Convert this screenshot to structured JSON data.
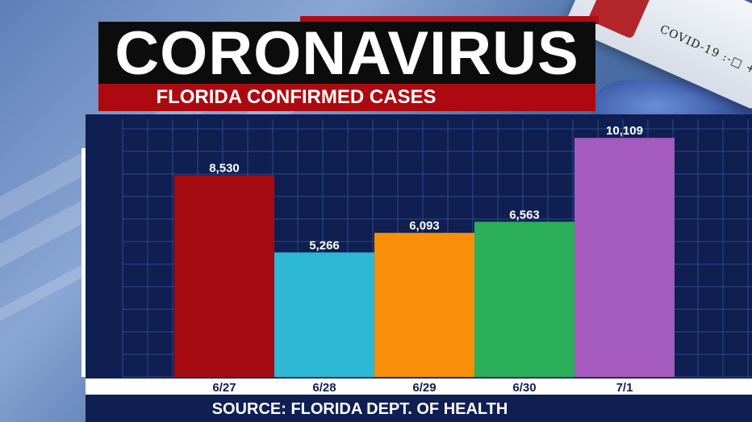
{
  "header": {
    "title": "CORONAVIRUS",
    "subtitle": "FLORIDA CONFIRMED CASES"
  },
  "tube_label": "COVID-19 :-□ +",
  "source": "SOURCE: FLORIDA DEPT. OF HEALTH",
  "colors": {
    "title_bg": "#0c0c0c",
    "accent_red": "#ac0a10",
    "panel_bg": "#0f1f52",
    "grid": "#2d4a8a"
  },
  "chart_data": {
    "type": "bar",
    "title": "",
    "xlabel": "",
    "ylabel": "",
    "categories": [
      "6/27",
      "6/28",
      "6/29",
      "6/30",
      "7/1"
    ],
    "values": [
      8530,
      5266,
      6093,
      6563,
      10109
    ],
    "value_labels": [
      "8,530",
      "5,266",
      "6,093",
      "6,563",
      "10,109"
    ],
    "colors": [
      "#a60b12",
      "#2db8d6",
      "#f78f08",
      "#2aaf5a",
      "#a45bbd"
    ],
    "ylim": [
      0,
      10900
    ],
    "grid": true,
    "legend": "none"
  }
}
